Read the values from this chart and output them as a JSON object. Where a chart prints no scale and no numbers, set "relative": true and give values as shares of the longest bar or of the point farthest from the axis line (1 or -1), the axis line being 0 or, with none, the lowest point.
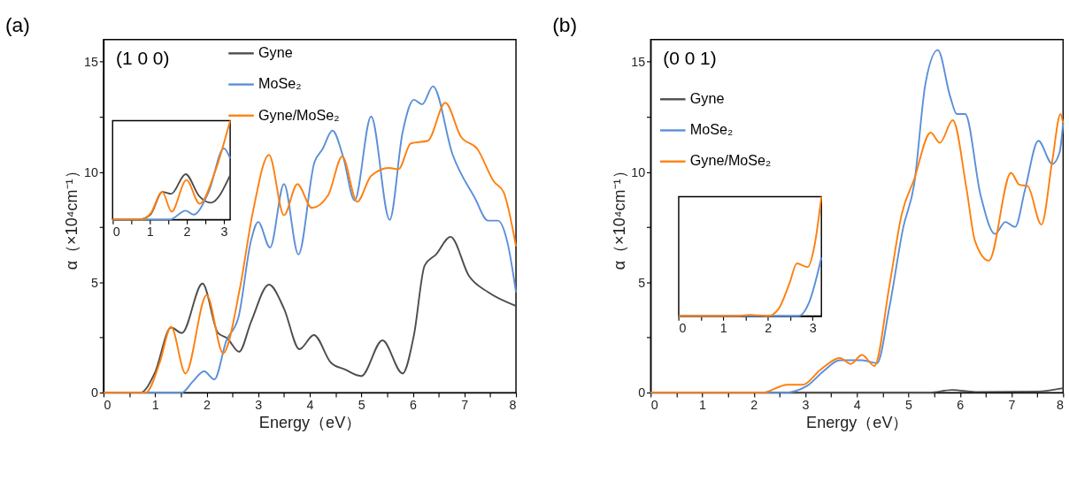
{
  "chart_data": [
    {
      "type": "line",
      "title": "(a)",
      "xlabel": "Energy（eV）",
      "ylabel": "α（×10⁴cm⁻¹）",
      "annotations": [
        "(1 0 0)"
      ],
      "legend": "top",
      "xlim": [
        0,
        8
      ],
      "ylim": [
        0,
        16
      ],
      "xticks": [
        0,
        {
          "value": 0.5,
          "label": null
        },
        1,
        {
          "value": 1.5,
          "label": null
        },
        2,
        {
          "value": 2.5,
          "label": null
        },
        3,
        {
          "value": 3.5,
          "label": null
        },
        4,
        {
          "value": 4.5,
          "label": null
        },
        5,
        {
          "value": 5.5,
          "label": null
        },
        6,
        {
          "value": 6.5,
          "label": null
        },
        7,
        {
          "value": 7.5,
          "label": null
        },
        8
      ],
      "yticks": [
        0,
        {
          "value": 2.5,
          "label": null
        },
        5,
        {
          "value": 7.5,
          "label": null
        },
        10,
        {
          "value": 12.5,
          "label": null
        },
        15
      ],
      "series": [
        {
          "name": "Gyne",
          "color": "#4d4d4d",
          "x": [
            0,
            0.72,
            0.99,
            1.31,
            1.52,
            1.92,
            2.22,
            2.4,
            2.63,
            2.86,
            3.21,
            3.5,
            3.8,
            4.08,
            4.41,
            4.68,
            5.0,
            5.41,
            5.8,
            6.02,
            6.23,
            6.45,
            6.73,
            7.09,
            7.46,
            8.0
          ],
          "values": [
            0,
            0,
            0.87,
            2.95,
            2.7,
            4.94,
            2.7,
            2.46,
            1.85,
            3.2,
            4.89,
            3.81,
            1.97,
            2.61,
            1.36,
            1.05,
            0.75,
            2.37,
            0.87,
            2.6,
            5.77,
            6.26,
            7.06,
            5.28,
            4.55,
            3.93
          ]
        },
        {
          "name": "MoSe₂",
          "color": "#5b8fd9",
          "x": [
            0,
            1.52,
            1.73,
            1.95,
            2.15,
            2.38,
            2.62,
            2.86,
            3.0,
            3.23,
            3.5,
            3.78,
            4.09,
            4.25,
            4.44,
            4.65,
            4.87,
            5.19,
            5.55,
            5.8,
            6.02,
            6.18,
            6.39,
            6.77,
            7.2,
            7.46,
            7.65,
            7.84,
            8.0
          ],
          "values": [
            0,
            0,
            0.5,
            0.97,
            0.6,
            2.34,
            3.44,
            6.88,
            7.73,
            6.57,
            9.45,
            6.26,
            10.43,
            11.04,
            11.87,
            10.67,
            8.71,
            12.51,
            7.83,
            11.78,
            13.27,
            13.06,
            13.88,
            10.79,
            8.83,
            7.79,
            7.79,
            6.75,
            4.55
          ]
        },
        {
          "name": "Gyne/MoSe₂",
          "color": "#ff7f0e",
          "x": [
            0,
            0.82,
            1.09,
            1.31,
            1.59,
            2.0,
            2.32,
            2.64,
            2.89,
            3.21,
            3.5,
            3.76,
            4.04,
            4.36,
            4.63,
            4.92,
            5.19,
            5.54,
            5.72,
            5.96,
            6.29,
            6.63,
            6.93,
            7.25,
            7.57,
            7.76,
            8.0
          ],
          "values": [
            0,
            0,
            1.36,
            2.98,
            0.87,
            4.42,
            1.79,
            4.67,
            8.1,
            10.77,
            8.04,
            9.45,
            8.37,
            8.96,
            10.7,
            8.65,
            9.82,
            10.18,
            10.12,
            11.29,
            11.41,
            13.13,
            11.6,
            11.04,
            9.57,
            9.08,
            6.63
          ]
        }
      ]
    },
    {
      "type": "line",
      "relative": true,
      "xlim": [
        0,
        3.17
      ],
      "tick_labels": "x",
      "xticks": [
        0,
        {
          "value": 0.5,
          "label": null
        },
        1,
        {
          "value": 1.5,
          "label": null
        },
        2,
        {
          "value": 2.5,
          "label": null
        },
        3
      ],
      "series": [
        {
          "color": "#4d4d4d",
          "x": [
            0,
            0.72,
            1.02,
            1.34,
            1.58,
            1.97,
            2.33,
            2.65,
            3.17
          ],
          "values": [
            0,
            0,
            0.05,
            0.28,
            0.26,
            0.46,
            0.24,
            0.17,
            0.45
          ]
        },
        {
          "color": "#5b8fd9",
          "x": [
            0,
            1.54,
            1.97,
            2.18,
            2.59,
            3.0,
            3.17
          ],
          "values": [
            0,
            0,
            0.09,
            0.05,
            0.28,
            0.72,
            0.62
          ]
        },
        {
          "color": "#ff7f0e",
          "x": [
            0,
            0.79,
            1.02,
            1.34,
            1.59,
            1.99,
            2.35,
            2.74,
            3.17
          ],
          "values": [
            0,
            0,
            0.06,
            0.28,
            0.08,
            0.4,
            0.16,
            0.46,
            1
          ]
        }
      ]
    },
    {
      "type": "line",
      "title": "(b)",
      "xlabel": "Energy（eV）",
      "ylabel": "α（×10⁴cm⁻¹）",
      "annotations": [
        "(0 0 1)"
      ],
      "legend": "top left",
      "xlim": [
        0,
        8
      ],
      "ylim": [
        0,
        16
      ],
      "xticks": [
        0,
        {
          "value": 0.5,
          "label": null
        },
        1,
        {
          "value": 1.5,
          "label": null
        },
        2,
        {
          "value": 2.5,
          "label": null
        },
        3,
        {
          "value": 3.5,
          "label": null
        },
        4,
        {
          "value": 4.5,
          "label": null
        },
        5,
        {
          "value": 5.5,
          "label": null
        },
        6,
        {
          "value": 6.5,
          "label": null
        },
        7,
        {
          "value": 7.5,
          "label": null
        },
        8
      ],
      "yticks": [
        0,
        {
          "value": 2.5,
          "label": null
        },
        5,
        {
          "value": 7.5,
          "label": null
        },
        10,
        {
          "value": 12.5,
          "label": null
        },
        15
      ],
      "series": [
        {
          "name": "Gyne",
          "color": "#4d4d4d",
          "x": [
            0,
            5.4,
            5.85,
            6.3,
            7.5,
            8.0
          ],
          "values": [
            0,
            0,
            0.12,
            0.03,
            0.05,
            0.2
          ]
        },
        {
          "name": "MoSe₂",
          "color": "#5b8fd9",
          "x": [
            0,
            2.6,
            3.03,
            3.35,
            3.67,
            4.1,
            4.39,
            4.63,
            4.9,
            5.11,
            5.33,
            5.57,
            5.81,
            5.94,
            6.1,
            6.4,
            6.68,
            6.88,
            7.07,
            7.26,
            7.52,
            7.79,
            7.93,
            8.0
          ],
          "values": [
            0,
            0,
            0.3,
            0.97,
            1.47,
            1.47,
            1.33,
            3.86,
            7.49,
            9.42,
            14.0,
            15.52,
            13.41,
            12.62,
            12.62,
            8.94,
            7.19,
            7.73,
            7.51,
            9.18,
            11.41,
            10.36,
            10.87,
            12.2
          ]
        },
        {
          "name": "Gyne/MoSe₂",
          "color": "#ff7f0e",
          "x": [
            0,
            2.17,
            2.65,
            2.95,
            3.29,
            3.67,
            3.88,
            4.1,
            4.34,
            4.63,
            4.87,
            5.11,
            5.43,
            5.61,
            5.86,
            6.13,
            6.29,
            6.56,
            6.99,
            7.15,
            7.31,
            7.58,
            7.79,
            7.95,
            8.0
          ],
          "values": [
            0,
            0,
            0.36,
            0.36,
            1.03,
            1.57,
            1.3,
            1.71,
            1.21,
            4.83,
            8.09,
            9.66,
            11.78,
            11.32,
            12.34,
            9.18,
            6.88,
            5.98,
            9.96,
            9.42,
            9.36,
            7.61,
            10.51,
            12.62,
            12.2
          ]
        }
      ]
    },
    {
      "type": "line",
      "relative": true,
      "xlim": [
        0,
        3.2
      ],
      "tick_labels": "x",
      "xticks": [
        0,
        {
          "value": 0.5,
          "label": null
        },
        1,
        {
          "value": 1.5,
          "label": null
        },
        2,
        {
          "value": 2.5,
          "label": null
        },
        3
      ],
      "series": [
        {
          "color": "#5b8fd9",
          "x": [
            0,
            2.68,
            2.93,
            3.2
          ],
          "values": [
            0,
            0,
            0.12,
            0.49
          ]
        },
        {
          "color": "#ff7f0e",
          "x": [
            0,
            1.34,
            1.59,
            2.0,
            2.24,
            2.49,
            2.65,
            2.89,
            3.05,
            3.2
          ],
          "values": [
            0,
            0,
            0.01,
            0,
            0.06,
            0.28,
            0.44,
            0.41,
            0.6,
            1
          ]
        }
      ]
    }
  ]
}
